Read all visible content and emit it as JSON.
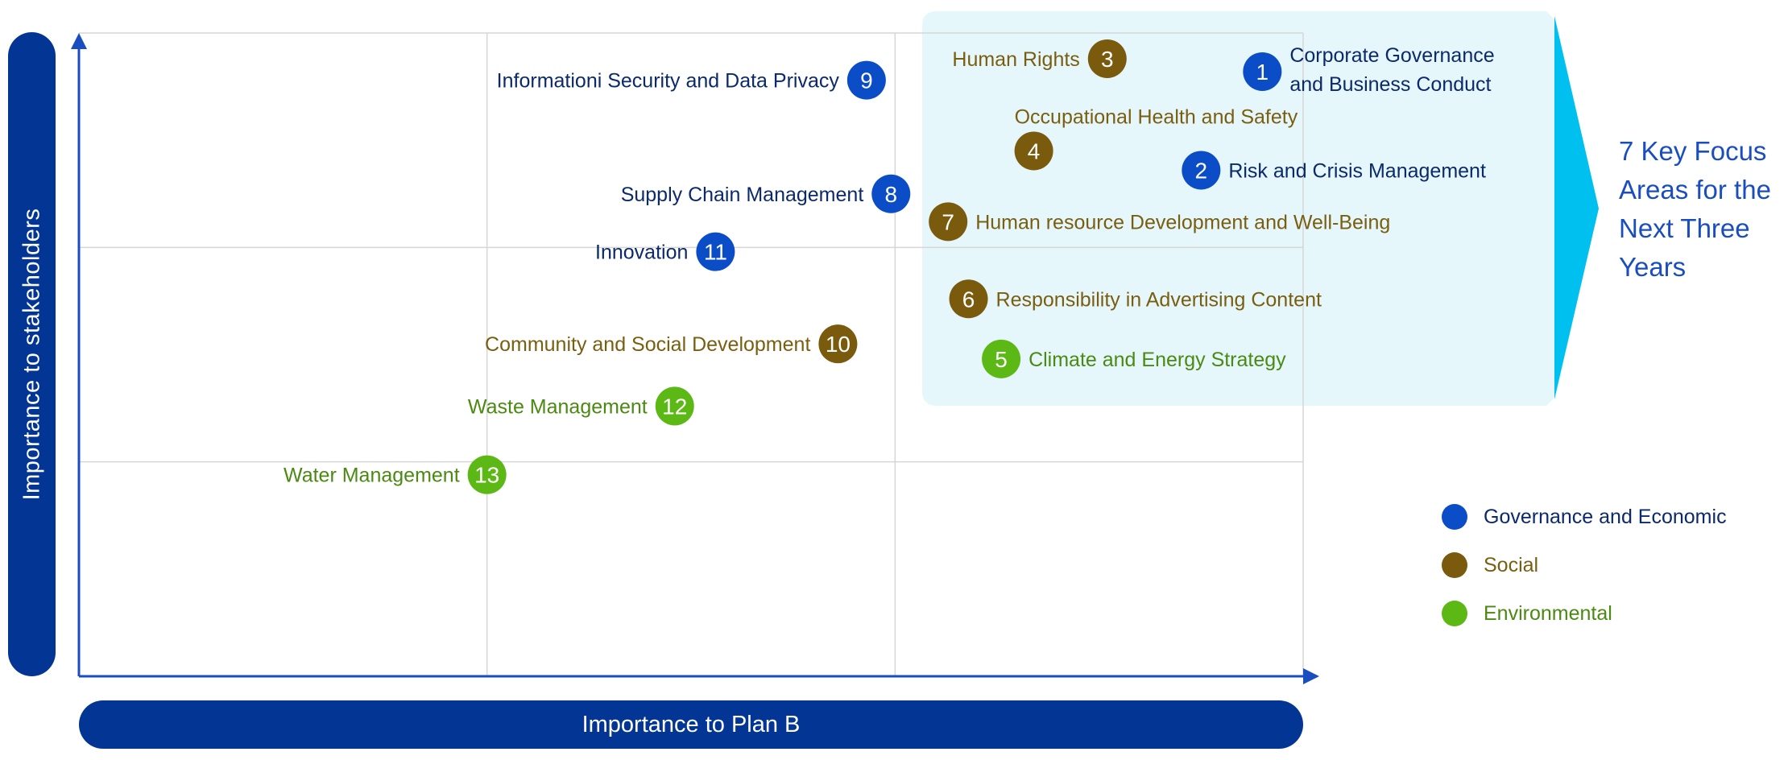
{
  "colors": {
    "governance": "#0a4dc7",
    "social": "#7a5a0c",
    "environmental": "#5cb814",
    "governance_text": "#0b2a6b",
    "social_text": "#7a5e10",
    "environmental_text": "#4a8a12",
    "axis": "#1a4dbf",
    "grid": "#d6d6d6",
    "highlight_fill": "#e6f7fc",
    "highlight_arrow": "#00c0ef",
    "pill": "#033594"
  },
  "chart_data": {
    "type": "scatter",
    "title": "",
    "xlabel": "Importance to Plan B",
    "ylabel": "Importance to stakeholders",
    "grid": true,
    "legend_position": "right",
    "categories": [
      {
        "key": "governance",
        "name": "Governance and Economic"
      },
      {
        "key": "social",
        "name": "Social"
      },
      {
        "key": "environmental",
        "name": "Environmental"
      }
    ],
    "points": [
      {
        "id": "1",
        "label": "Corporate Governance and Business Conduct",
        "category": "governance",
        "x": 2.9,
        "y": 2.82
      },
      {
        "id": "2",
        "label": "Risk and Crisis Management",
        "category": "governance",
        "x": 2.75,
        "y": 2.36
      },
      {
        "id": "3",
        "label": "Human Rights",
        "category": "social",
        "x": 2.52,
        "y": 2.88
      },
      {
        "id": "4",
        "label": "Occupational Health and Safety",
        "category": "social",
        "x": 2.34,
        "y": 2.45
      },
      {
        "id": "5",
        "label": "Climate and Energy Strategy",
        "category": "environmental",
        "x": 2.26,
        "y": 1.48
      },
      {
        "id": "6",
        "label": "Responsibility in Advertising Content",
        "category": "social",
        "x": 2.18,
        "y": 1.76
      },
      {
        "id": "7",
        "label": "Human resource Development and Well-Being",
        "category": "social",
        "x": 2.13,
        "y": 2.12
      },
      {
        "id": "8",
        "label": "Supply Chain Management",
        "category": "governance",
        "x": 1.99,
        "y": 2.25
      },
      {
        "id": "9",
        "label": "Informationi Security and Data Privacy",
        "category": "governance",
        "x": 1.93,
        "y": 2.78
      },
      {
        "id": "10",
        "label": "Community and Social Development",
        "category": "social",
        "x": 1.86,
        "y": 1.55
      },
      {
        "id": "11",
        "label": "Innovation",
        "category": "governance",
        "x": 1.56,
        "y": 1.98
      },
      {
        "id": "12",
        "label": "Waste Management",
        "category": "environmental",
        "x": 1.46,
        "y": 1.26
      },
      {
        "id": "13",
        "label": "Water Management",
        "category": "environmental",
        "x": 1.0,
        "y": 0.94
      }
    ],
    "xlim": [
      0,
      3
    ],
    "ylim": [
      0,
      3
    ],
    "highlight_label": "7 Key Focus Areas for the Next Three Years"
  },
  "axis_labels": {
    "y": "Importance to stakeholders",
    "x": "Importance to Plan B"
  },
  "legend": [
    {
      "key": "governance",
      "label": "Governance and Economic"
    },
    {
      "key": "social",
      "label": "Social"
    },
    {
      "key": "environmental",
      "label": "Environmental"
    }
  ],
  "focus_title": "7 Key Focus Areas for the Next Three Years"
}
